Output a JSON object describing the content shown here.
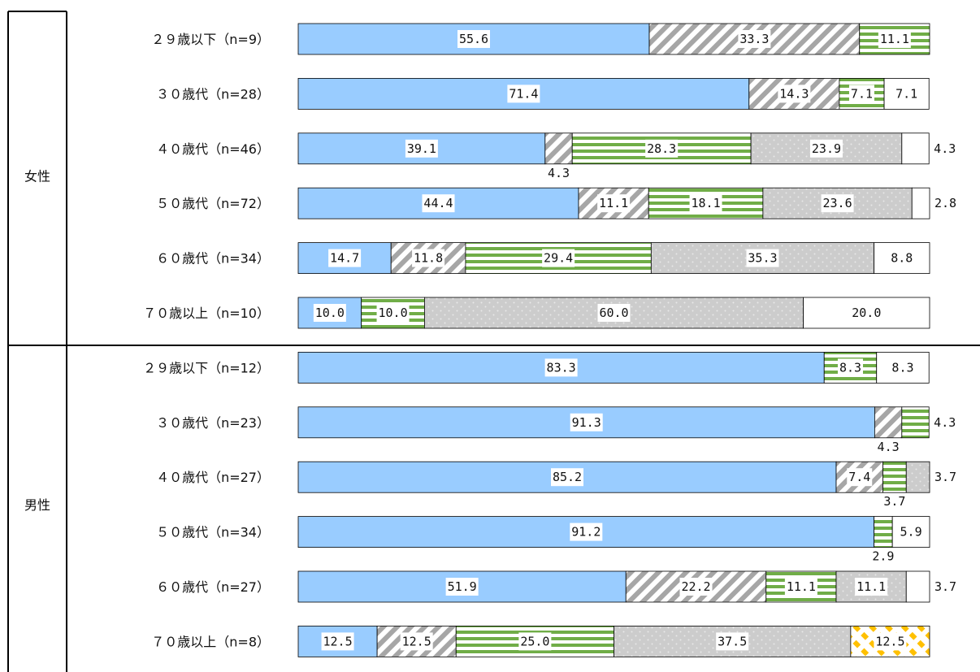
{
  "chart_data": {
    "type": "bar",
    "orientation": "horizontal",
    "stacked": true,
    "xlim": [
      0,
      100
    ],
    "groups": [
      {
        "name": "女性",
        "rows": [
          {
            "label": "２９歳以下（n=9）",
            "values": [
              55.6,
              33.3,
              11.1,
              0,
              0,
              0
            ]
          },
          {
            "label": "３０歳代（n=28）",
            "values": [
              71.4,
              14.3,
              7.1,
              0,
              7.1,
              0
            ]
          },
          {
            "label": "４０歳代（n=46）",
            "values": [
              39.1,
              4.3,
              28.3,
              23.9,
              4.3,
              0
            ]
          },
          {
            "label": "５０歳代（n=72）",
            "values": [
              44.4,
              11.1,
              18.1,
              23.6,
              2.8,
              0
            ]
          },
          {
            "label": "６０歳代（n=34）",
            "values": [
              14.7,
              11.8,
              29.4,
              35.3,
              8.8,
              0
            ]
          },
          {
            "label": "７０歳以上（n=10）",
            "values": [
              10.0,
              0,
              10.0,
              60.0,
              20.0,
              0
            ]
          }
        ]
      },
      {
        "name": "男性",
        "rows": [
          {
            "label": "２９歳以下（n=12）",
            "values": [
              83.3,
              0,
              8.3,
              0,
              8.3,
              0
            ]
          },
          {
            "label": "３０歳代（n=23）",
            "values": [
              91.3,
              4.3,
              4.3,
              0,
              0,
              0
            ]
          },
          {
            "label": "４０歳代（n=27）",
            "values": [
              85.2,
              7.4,
              3.7,
              3.7,
              0,
              0
            ]
          },
          {
            "label": "５０歳代（n=34）",
            "values": [
              91.2,
              0,
              2.9,
              0,
              5.9,
              0
            ]
          },
          {
            "label": "６０歳代（n=27）",
            "values": [
              51.9,
              22.2,
              11.1,
              11.1,
              3.7,
              0
            ]
          },
          {
            "label": "７０歳以上（n=8）",
            "values": [
              12.5,
              12.5,
              25.0,
              37.5,
              0,
              12.5
            ]
          }
        ]
      }
    ],
    "series_styles": [
      {
        "fill": "#99ccff",
        "pattern": "solid"
      },
      {
        "fill": "#a6a6a6",
        "pattern": "diagonal-stripes"
      },
      {
        "fill": "#70ad47",
        "pattern": "horizontal-stripes"
      },
      {
        "fill": "#cccccc",
        "pattern": "dots"
      },
      {
        "fill": "#ffffff",
        "pattern": "solid"
      },
      {
        "fill": "#ffc000",
        "pattern": "diagonal-dashes"
      }
    ],
    "labels": [
      [
        [
          "55.6",
          "33.3",
          "11.1",
          null,
          null,
          null
        ],
        [
          "71.4",
          "14.3",
          "7.1",
          null,
          "7.1",
          null
        ],
        [
          "39.1",
          "4.3",
          "28.3",
          "23.9",
          "4.3",
          null
        ],
        [
          "44.4",
          "11.1",
          "18.1",
          "23.6",
          "2.8",
          null
        ],
        [
          "14.7",
          "11.8",
          "29.4",
          "35.3",
          "8.8",
          null
        ],
        [
          "10.0",
          null,
          "10.0",
          "60.0",
          "20.0",
          null
        ]
      ],
      [
        [
          "83.3",
          null,
          "8.3",
          null,
          "8.3",
          null
        ],
        [
          "91.3",
          "4.3",
          "4.3",
          null,
          null,
          null
        ],
        [
          "85.2",
          "7.4",
          "3.7",
          "3.7",
          null,
          null
        ],
        [
          "91.2",
          null,
          "2.9",
          null,
          "5.9",
          null
        ],
        [
          "51.9",
          "22.2",
          "11.1",
          "11.1",
          "3.7",
          null
        ],
        [
          "12.5",
          "12.5",
          "25.0",
          "37.5",
          null,
          "12.5"
        ]
      ]
    ],
    "grid": false,
    "legend": "none"
  }
}
